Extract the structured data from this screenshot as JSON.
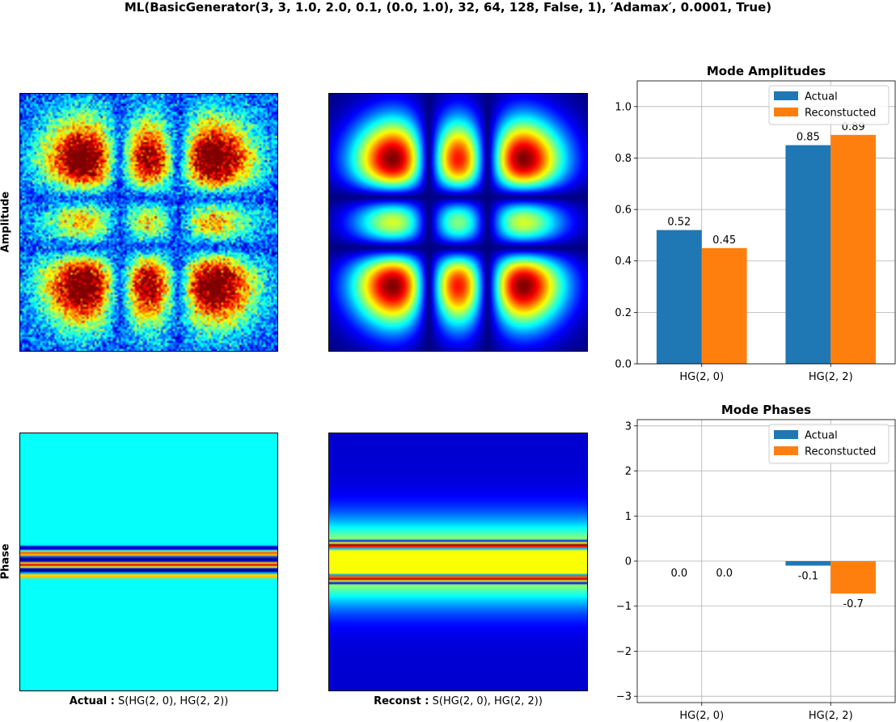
{
  "suptitle": "ML(BasicGenerator(3, 3, 1.0, 2.0, 0.1, (0.0, 1.0), 32, 64, 128, False, 1), ′Adamax′, 0.0001, True)",
  "row_labels": {
    "amplitude": "Amplitude",
    "phase": "Phase"
  },
  "captions": {
    "actual_prefix": "Actual :",
    "actual_text": "S(HG(2, 0), HG(2, 2))",
    "reconst_prefix": "Reconst :",
    "reconst_text": "S(HG(2, 0), HG(2, 2))"
  },
  "colors": {
    "actual": "#1f77b4",
    "reconstructed": "#ff7f0e",
    "grid": "#b0b0b0"
  },
  "chart_data": [
    {
      "type": "bar",
      "title": "Mode Amplitudes",
      "categories": [
        "HG(2, 0)",
        "HG(2, 2)"
      ],
      "series": [
        {
          "name": "Actual",
          "values": [
            0.52,
            0.85
          ],
          "labels": [
            "0.52",
            "0.85"
          ]
        },
        {
          "name": "Reconstucted",
          "values": [
            0.45,
            0.89
          ],
          "labels": [
            "0.45",
            "0.89"
          ]
        }
      ],
      "ylim": [
        0.0,
        1.1
      ],
      "yticks": [
        0.0,
        0.2,
        0.4,
        0.6,
        0.8,
        1.0
      ],
      "ytick_labels": [
        "0.0",
        "0.2",
        "0.4",
        "0.6",
        "0.8",
        "1.0"
      ],
      "grid": true,
      "legend": "top-right"
    },
    {
      "type": "bar",
      "title": "Mode Phases",
      "categories": [
        "HG(2, 0)",
        "HG(2, 2)"
      ],
      "series": [
        {
          "name": "Actual",
          "values": [
            0.0,
            -0.1
          ],
          "labels": [
            "0.0",
            "-0.1"
          ]
        },
        {
          "name": "Reconstucted",
          "values": [
            0.0,
            -0.72
          ],
          "labels": [
            "0.0",
            "-0.7"
          ]
        }
      ],
      "ylim": [
        -3.14,
        3.14
      ],
      "yticks": [
        -3,
        -2,
        -1,
        0,
        1,
        2,
        3
      ],
      "ytick_labels": [
        "−3",
        "−2",
        "−1",
        "0",
        "1",
        "2",
        "3"
      ],
      "grid": true,
      "legend": "top-right"
    }
  ]
}
